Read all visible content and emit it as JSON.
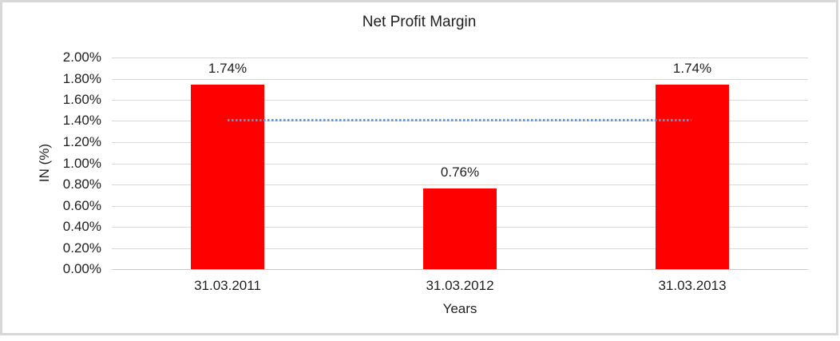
{
  "chart_data": {
    "type": "bar",
    "title": "Net Profit Margin",
    "xlabel": "Years",
    "ylabel": "IN (%)",
    "categories": [
      "31.03.2011",
      "31.03.2012",
      "31.03.2013"
    ],
    "values": [
      1.74,
      0.76,
      1.74
    ],
    "data_labels": [
      "1.74%",
      "0.76%",
      "1.74%"
    ],
    "ylim": [
      0,
      2.0
    ],
    "ytick_step": 0.2,
    "ytick_labels": [
      "0.00%",
      "0.20%",
      "0.40%",
      "0.60%",
      "0.80%",
      "1.00%",
      "1.20%",
      "1.40%",
      "1.60%",
      "1.80%",
      "2.00%"
    ],
    "grid": true,
    "legend": false,
    "bar_color": "#FF0000",
    "gridline_color": "#D9D9D9",
    "baseline_color": "#C8C8C8",
    "text_color": "#1F1F1F",
    "average_line": {
      "value": 1.41,
      "style": "dotted",
      "color": "#5B9BD5"
    }
  }
}
